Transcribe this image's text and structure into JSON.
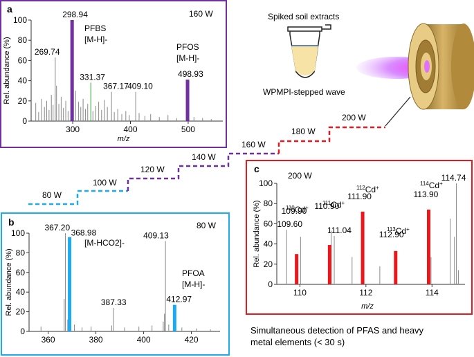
{
  "source_label": "Spiked soil extracts",
  "method_label": "WPMPI-stepped wave",
  "conclusion_line1": "Simultaneous detection of PFAS and heavy",
  "conclusion_line2": "metal elements (< 30 s)",
  "colors": {
    "purple": "#7030a0",
    "cyan": "#1eaaf0",
    "red": "#e8181c",
    "green": "#2ca02c",
    "gray": "#888888"
  },
  "power_steps": [
    "80 W",
    "100 W",
    "120 W",
    "140 W",
    "160 W",
    "180 W",
    "200 W"
  ],
  "chart_data": [
    {
      "type": "bar",
      "panel": "a",
      "power": "160 W",
      "xlabel": "m/z",
      "ylabel": "Rel. abundance (%)",
      "xlim": [
        228,
        560
      ],
      "ylim": [
        0,
        100
      ],
      "xticks": [
        300,
        400,
        500
      ],
      "yticks": [
        0,
        20,
        40,
        60,
        80,
        100
      ],
      "highlight_color": "#7030a0",
      "peaks": [
        {
          "mz": 298.94,
          "value": 100,
          "label": "298.94",
          "highlight": true
        },
        {
          "mz": 498.93,
          "value": 41,
          "label": "498.93",
          "highlight": true
        },
        {
          "mz": 269.74,
          "value": 63,
          "label": "269.74"
        },
        {
          "mz": 331.37,
          "value": 38,
          "label": "331.37",
          "color": "#2ca02c"
        },
        {
          "mz": 367.17,
          "value": 29,
          "label": "367.17"
        },
        {
          "mz": 409.1,
          "value": 29,
          "label": "409.10"
        },
        {
          "mz": 236,
          "value": 18
        },
        {
          "mz": 241,
          "value": 9
        },
        {
          "mz": 246,
          "value": 22
        },
        {
          "mz": 251,
          "value": 14
        },
        {
          "mz": 255,
          "value": 20
        },
        {
          "mz": 259,
          "value": 11
        },
        {
          "mz": 263,
          "value": 26
        },
        {
          "mz": 266,
          "value": 16
        },
        {
          "mz": 272,
          "value": 35
        },
        {
          "mz": 276,
          "value": 17
        },
        {
          "mz": 280,
          "value": 24
        },
        {
          "mz": 284,
          "value": 13
        },
        {
          "mz": 288,
          "value": 20
        },
        {
          "mz": 292,
          "value": 10
        },
        {
          "mz": 305,
          "value": 30
        },
        {
          "mz": 310,
          "value": 19
        },
        {
          "mz": 314,
          "value": 14
        },
        {
          "mz": 318,
          "value": 22
        },
        {
          "mz": 322,
          "value": 12
        },
        {
          "mz": 326,
          "value": 17
        },
        {
          "mz": 335,
          "value": 10
        },
        {
          "mz": 340,
          "value": 15
        },
        {
          "mz": 345,
          "value": 19
        },
        {
          "mz": 350,
          "value": 11
        },
        {
          "mz": 355,
          "value": 21
        },
        {
          "mz": 360,
          "value": 14
        },
        {
          "mz": 372,
          "value": 9
        },
        {
          "mz": 378,
          "value": 12
        },
        {
          "mz": 385,
          "value": 7
        },
        {
          "mz": 392,
          "value": 10
        },
        {
          "mz": 398,
          "value": 6
        },
        {
          "mz": 415,
          "value": 8
        },
        {
          "mz": 425,
          "value": 5
        },
        {
          "mz": 435,
          "value": 7
        },
        {
          "mz": 450,
          "value": 4
        },
        {
          "mz": 465,
          "value": 6
        },
        {
          "mz": 480,
          "value": 3
        },
        {
          "mz": 510,
          "value": 4
        },
        {
          "mz": 525,
          "value": 3
        },
        {
          "mz": 540,
          "value": 2
        }
      ],
      "annotations": [
        "PFBS",
        "[M-H]-",
        "PFOS",
        "[M-H]-"
      ]
    },
    {
      "type": "bar",
      "panel": "b",
      "power": "80 W",
      "xlabel": "",
      "ylabel": "Rel. abundance (%)",
      "xlim": [
        352,
        432
      ],
      "ylim": [
        0,
        100
      ],
      "xticks": [
        360,
        380,
        400,
        420
      ],
      "yticks": [
        0,
        20,
        40,
        60,
        80,
        100
      ],
      "highlight_color": "#1eaaf0",
      "peaks": [
        {
          "mz": 368.98,
          "value": 96,
          "label": "368.98",
          "highlight": true
        },
        {
          "mz": 412.97,
          "value": 27,
          "label": "412.97",
          "highlight": true
        },
        {
          "mz": 367.2,
          "value": 100,
          "label": "367.20"
        },
        {
          "mz": 409.13,
          "value": 92,
          "label": "409.13"
        },
        {
          "mz": 387.33,
          "value": 24,
          "label": "387.33"
        },
        {
          "mz": 357.0,
          "value": 5
        },
        {
          "mz": 366.7,
          "value": 33
        },
        {
          "mz": 368.2,
          "value": 12
        },
        {
          "mz": 371.0,
          "value": 7
        },
        {
          "mz": 374.2,
          "value": 4
        },
        {
          "mz": 378.0,
          "value": 5
        },
        {
          "mz": 386.6,
          "value": 6
        },
        {
          "mz": 392.0,
          "value": 4
        },
        {
          "mz": 398.0,
          "value": 5
        },
        {
          "mz": 403.5,
          "value": 6
        },
        {
          "mz": 408.2,
          "value": 10
        },
        {
          "mz": 408.7,
          "value": 18
        },
        {
          "mz": 410.5,
          "value": 7
        },
        {
          "mz": 416.0,
          "value": 4
        },
        {
          "mz": 422.0,
          "value": 3
        },
        {
          "mz": 428.0,
          "value": 2
        }
      ],
      "annotations": [
        "[M-HCO2]-",
        "PFOA",
        "[M-H]-"
      ]
    },
    {
      "type": "bar",
      "panel": "c",
      "power": "200 W",
      "xlabel": "m/z",
      "ylabel": "Rel. abundance (%)",
      "xlim": [
        109.3,
        115.0
      ],
      "ylim": [
        0,
        100
      ],
      "xticks": [
        110,
        112,
        114
      ],
      "yticks": [
        0,
        20,
        40,
        60,
        80,
        100
      ],
      "highlight_color": "#e8181c",
      "peaks": [
        {
          "mz": 109.9,
          "value": 30,
          "label": "109.90",
          "highlight": true
        },
        {
          "mz": 110.9,
          "value": 39,
          "label": "110.90",
          "highlight": true
        },
        {
          "mz": 111.9,
          "value": 72,
          "label": "111.90",
          "highlight": true
        },
        {
          "mz": 112.9,
          "value": 33,
          "label": "112.90",
          "highlight": true
        },
        {
          "mz": 113.9,
          "value": 74,
          "label": "113.90",
          "highlight": true
        },
        {
          "mz": 109.6,
          "value": 54,
          "label": "109.60"
        },
        {
          "mz": 111.04,
          "value": 48,
          "label": "111.04"
        },
        {
          "mz": 114.74,
          "value": 100,
          "label": "114.74"
        },
        {
          "mz": 110.02,
          "value": 47
        },
        {
          "mz": 110.95,
          "value": 53
        },
        {
          "mz": 111.58,
          "value": 27
        },
        {
          "mz": 112.42,
          "value": 18
        },
        {
          "mz": 113.97,
          "value": 27
        },
        {
          "mz": 114.55,
          "value": 65
        },
        {
          "mz": 114.68,
          "value": 47
        },
        {
          "mz": 114.8,
          "value": 14
        }
      ],
      "annotations": [
        {
          "isotope": "110",
          "label": "110Cd+"
        },
        {
          "isotope": "111",
          "label": "111Cd+"
        },
        {
          "isotope": "112",
          "label": "112Cd+"
        },
        {
          "isotope": "113",
          "label": "113Cd+"
        },
        {
          "isotope": "114",
          "label": "114Cd+"
        }
      ]
    }
  ]
}
